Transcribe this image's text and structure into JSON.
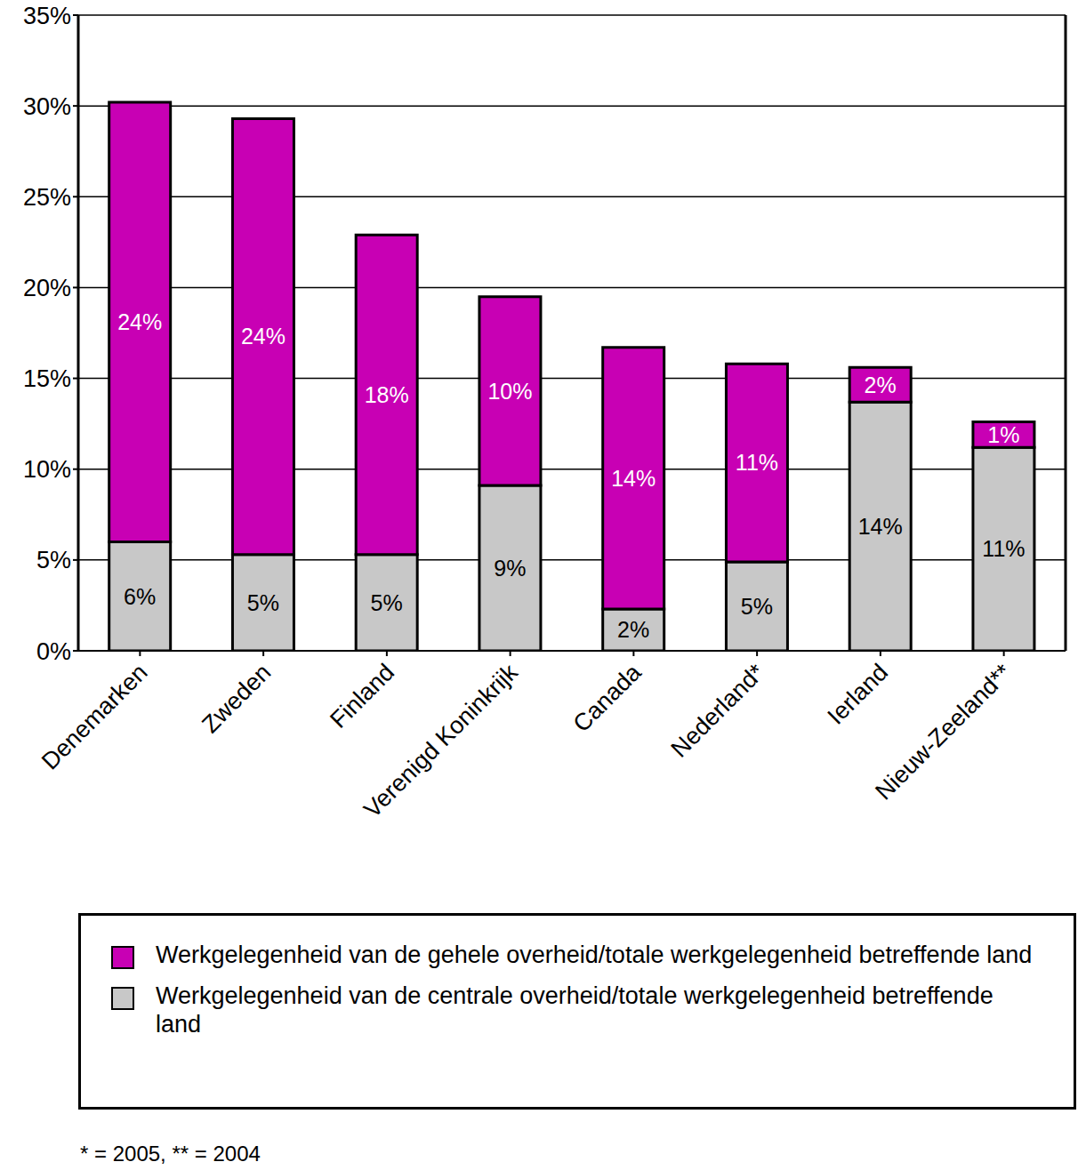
{
  "chart_data": {
    "type": "bar",
    "stacked": true,
    "data_labels": true,
    "grid": true,
    "categories": [
      "Denemarken",
      "Zweden",
      "Finland",
      "Verenigd Koninkrijk",
      "Canada",
      "Nederland*",
      "Ierland",
      "Nieuw-Zeeland**"
    ],
    "series": [
      {
        "name": "Werkgelegenheid van de centrale overheid/totale werkgelegenheid betreffende land",
        "color": "#c8c8c8",
        "values": [
          6.0,
          5.3,
          5.3,
          9.1,
          2.3,
          4.9,
          13.7,
          11.2
        ],
        "value_labels": [
          "6%",
          "5%",
          "5%",
          "9%",
          "2%",
          "5%",
          "14%",
          "11%"
        ]
      },
      {
        "name": "Werkgelegenheid van de gehele overheid/totale werkgelegenheid betreffende land",
        "color": "#c800b4",
        "values": [
          24.2,
          24.0,
          17.6,
          10.4,
          14.4,
          10.9,
          1.9,
          1.4
        ],
        "value_labels": [
          "24%",
          "24%",
          "18%",
          "10%",
          "14%",
          "11%",
          "2%",
          "1%"
        ]
      }
    ],
    "ylim": [
      0,
      35
    ],
    "yticks": [
      {
        "value": 0,
        "label": "0%"
      },
      {
        "value": 5,
        "label": "5%"
      },
      {
        "value": 10,
        "label": "10%"
      },
      {
        "value": 15,
        "label": "15%"
      },
      {
        "value": 20,
        "label": "20%"
      },
      {
        "value": 25,
        "label": "25%"
      },
      {
        "value": 30,
        "label": "30%"
      },
      {
        "value": 35,
        "label": "35%"
      }
    ],
    "footnote": "* = 2005, ** = 2004"
  }
}
